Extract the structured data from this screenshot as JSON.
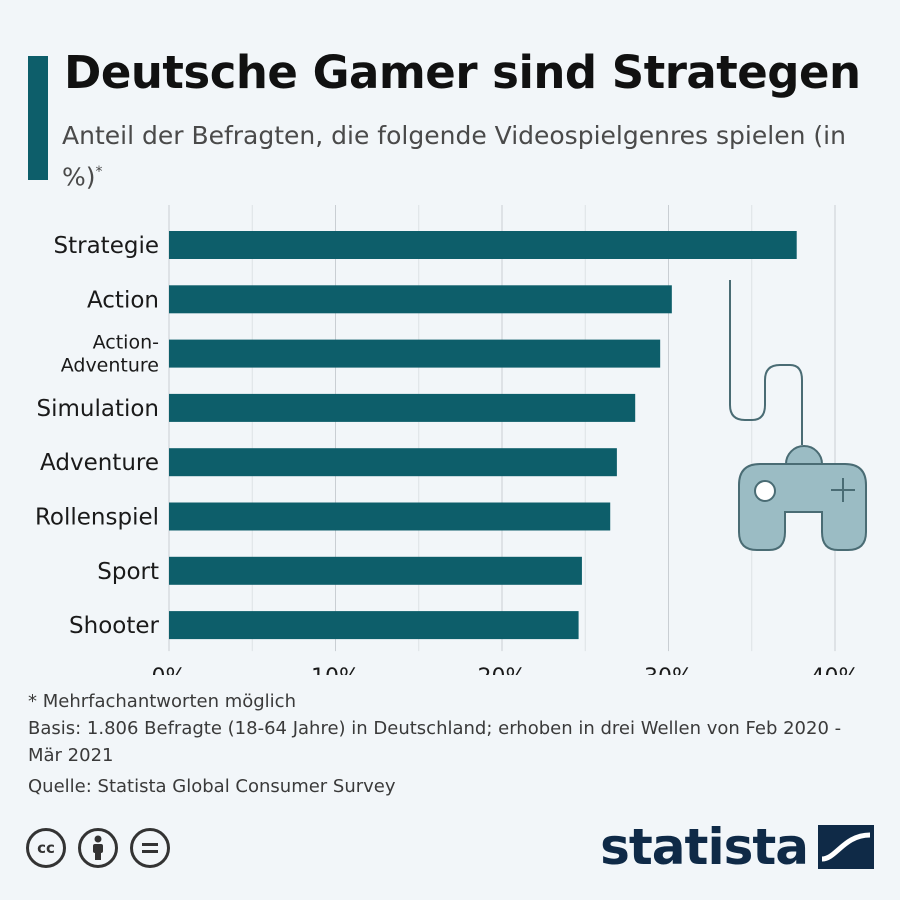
{
  "header": {
    "title": "Deutsche Gamer sind Strategen",
    "subtitle": "Anteil der Befragten, die folgende Videospielgenres spielen (in %)",
    "subtitle_mark": "*"
  },
  "chart_data": {
    "type": "bar",
    "orientation": "horizontal",
    "categories": [
      "Strategie",
      "Action",
      "Action-Adventure",
      "Simulation",
      "Adventure",
      "Rollenspiel",
      "Sport",
      "Shooter"
    ],
    "category_display": [
      [
        "Strategie"
      ],
      [
        "Action"
      ],
      [
        "Action-",
        "Adventure"
      ],
      [
        "Simulation"
      ],
      [
        "Adventure"
      ],
      [
        "Rollenspiel"
      ],
      [
        "Sport"
      ],
      [
        "Shooter"
      ]
    ],
    "values": [
      37.7,
      30.2,
      29.5,
      28.0,
      26.9,
      26.5,
      24.8,
      24.6
    ],
    "xlim": [
      0,
      40
    ],
    "xticks": [
      0,
      10,
      20,
      30,
      40
    ],
    "xtick_labels": [
      "0%",
      "10%",
      "20%",
      "30%",
      "40%"
    ],
    "grid": true,
    "bar_color": "#0d5e6a",
    "title": "Deutsche Gamer sind Strategen"
  },
  "decoration": {
    "icon": "gamepad-icon",
    "color": "#9bbcc4"
  },
  "footnotes": {
    "note": "* Mehrfachantworten möglich",
    "basis": "Basis: 1.806 Befragte (18-64 Jahre) in Deutschland; erhoben in drei Wellen von Feb 2020 - Mär 2021",
    "source": "Quelle: Statista Global Consumer Survey"
  },
  "license_icons": [
    "cc-icon",
    "by-icon",
    "nd-icon"
  ],
  "brand": {
    "name": "statista",
    "color": "#0f2a47"
  }
}
